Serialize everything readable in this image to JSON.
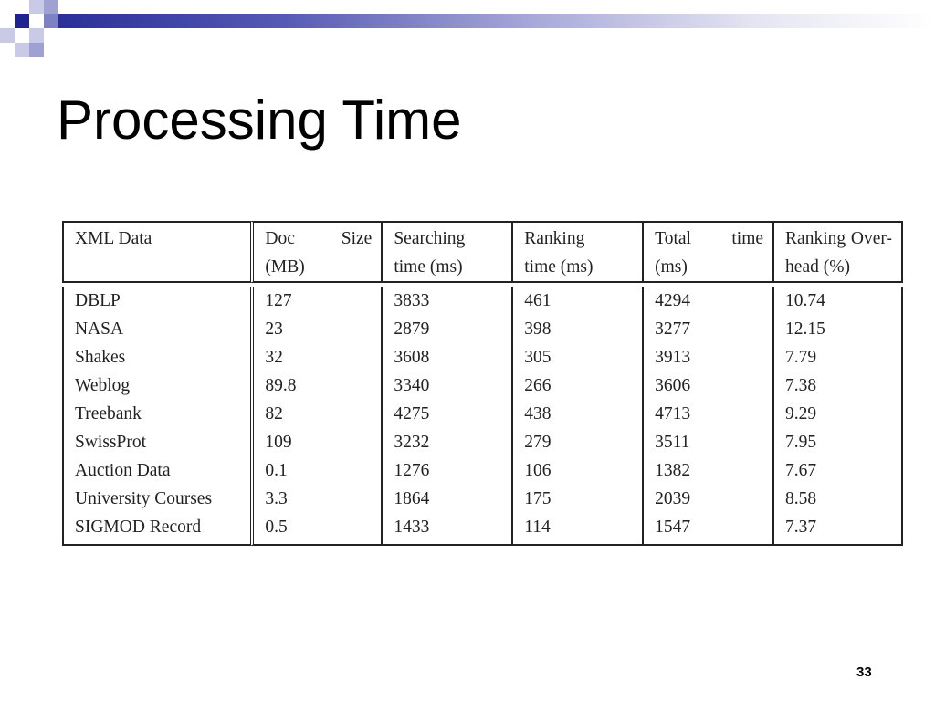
{
  "slide": {
    "title": "Processing Time",
    "page_number": "33",
    "accent_color": "#2b2f9a"
  },
  "table": {
    "headers": [
      {
        "line1": [
          "XML Data"
        ],
        "line2": ""
      },
      {
        "line1": [
          "Doc",
          "Size"
        ],
        "line2": "(MB)"
      },
      {
        "line1": [
          "Searching"
        ],
        "line2": "time (ms)"
      },
      {
        "line1": [
          "Ranking"
        ],
        "line2": "time (ms)"
      },
      {
        "line1": [
          "Total",
          "time"
        ],
        "line2": "(ms)"
      },
      {
        "line1": [
          "Ranking",
          "Over-"
        ],
        "line2": "head (%)"
      }
    ],
    "rows": [
      [
        "DBLP",
        "127",
        "3833",
        "461",
        "4294",
        "10.74"
      ],
      [
        "NASA",
        "23",
        "2879",
        "398",
        "3277",
        "12.15"
      ],
      [
        "Shakes",
        "32",
        "3608",
        "305",
        "3913",
        "7.79"
      ],
      [
        "Weblog",
        "89.8",
        "3340",
        "266",
        "3606",
        "7.38"
      ],
      [
        "Treebank",
        "82",
        "4275",
        "438",
        "4713",
        "9.29"
      ],
      [
        "SwissProt",
        "109",
        "3232",
        "279",
        "3511",
        "7.95"
      ],
      [
        "Auction Data",
        "0.1",
        "1276",
        "106",
        "1382",
        "7.67"
      ],
      [
        "University Courses",
        "3.3",
        "1864",
        "175",
        "2039",
        "8.58"
      ],
      [
        "SIGMOD Record",
        "0.5",
        "1433",
        "114",
        "1547",
        "7.37"
      ]
    ]
  }
}
